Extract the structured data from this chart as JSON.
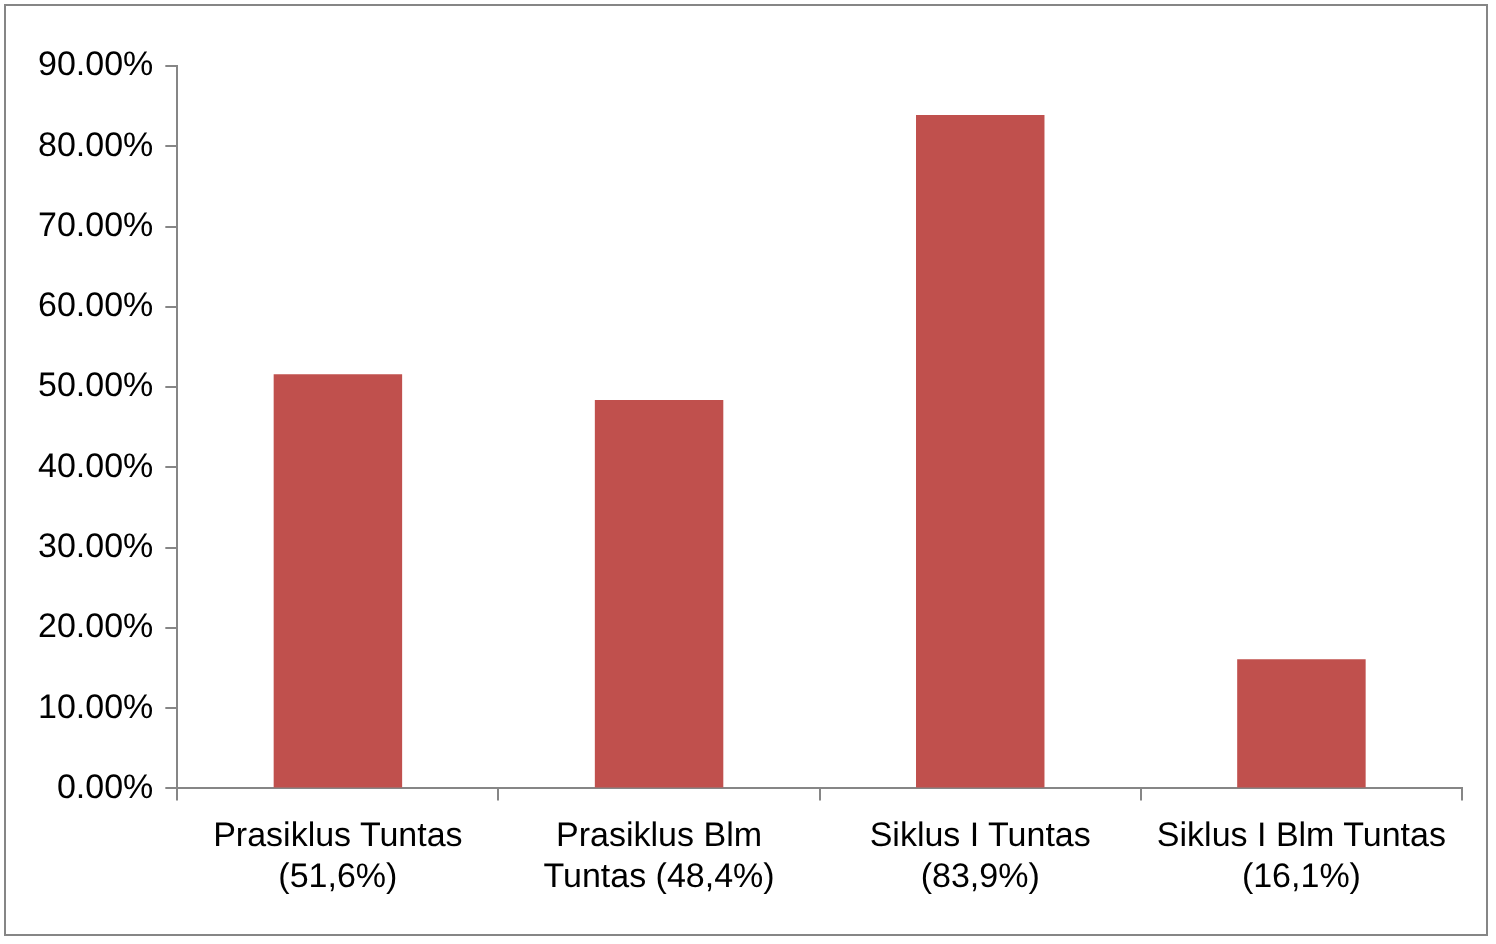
{
  "chart_data": {
    "type": "bar",
    "categories": [
      "Prasiklus Tuntas (51,6%)",
      "Prasiklus Blm Tuntas (48,4%)",
      "Siklus I Tuntas (83,9%)",
      "Siklus I Blm Tuntas (16,1%)"
    ],
    "values": [
      51.6,
      48.4,
      83.9,
      16.1
    ],
    "color": "#c0504d",
    "ylim": [
      0,
      90
    ],
    "yticks": [
      {
        "value": 0,
        "label": "0.00%"
      },
      {
        "value": 10,
        "label": "10.00%"
      },
      {
        "value": 20,
        "label": "20.00%"
      },
      {
        "value": 30,
        "label": "30.00%"
      },
      {
        "value": 40,
        "label": "40.00%"
      },
      {
        "value": 50,
        "label": "50.00%"
      },
      {
        "value": 60,
        "label": "60.00%"
      },
      {
        "value": 70,
        "label": "70.00%"
      },
      {
        "value": 80,
        "label": "80.00%"
      },
      {
        "value": 90,
        "label": "90.00%"
      }
    ],
    "grid": false,
    "legend": false
  }
}
